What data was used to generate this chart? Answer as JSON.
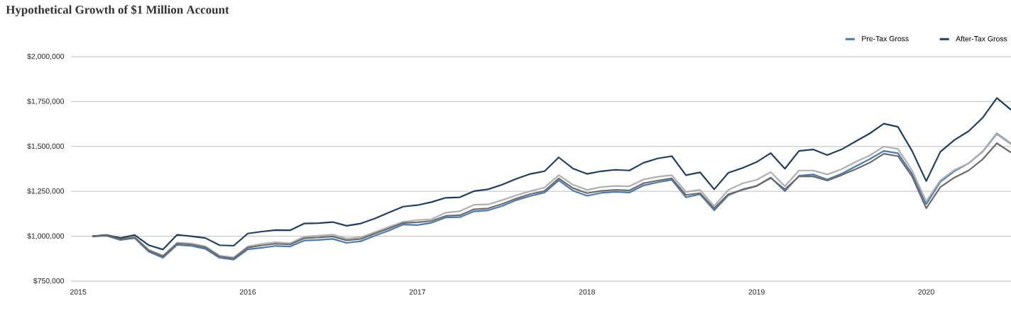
{
  "chart_data": {
    "type": "line",
    "title": "Hypothetical Growth of $1 Million Account",
    "x": [
      "2015-02",
      "2015-03",
      "2015-04",
      "2015-05",
      "2015-06",
      "2015-07",
      "2015-08",
      "2015-09",
      "2015-10",
      "2015-11",
      "2015-12",
      "2016-01",
      "2016-02",
      "2016-03",
      "2016-04",
      "2016-05",
      "2016-06",
      "2016-07",
      "2016-08",
      "2016-09",
      "2016-10",
      "2016-11",
      "2016-12",
      "2017-01",
      "2017-02",
      "2017-03",
      "2017-04",
      "2017-05",
      "2017-06",
      "2017-07",
      "2017-08",
      "2017-09",
      "2017-10",
      "2017-11",
      "2017-12",
      "2018-01",
      "2018-02",
      "2018-03",
      "2018-04",
      "2018-05",
      "2018-06",
      "2018-07",
      "2018-08",
      "2018-09",
      "2018-10",
      "2018-11",
      "2018-12",
      "2019-01",
      "2019-02",
      "2019-03",
      "2019-04",
      "2019-05",
      "2019-06",
      "2019-07",
      "2019-08",
      "2019-09",
      "2019-10",
      "2019-11",
      "2019-12",
      "2020-01",
      "2020-02",
      "2020-03",
      "2020-04",
      "2020-05",
      "2020-06",
      "2020-07"
    ],
    "series": [
      {
        "name": "Pre-Tax Gross",
        "color": "#4a7ab0",
        "values": [
          1000000,
          1003000,
          979000,
          990000,
          914000,
          880000,
          952000,
          946000,
          930000,
          880000,
          870000,
          927000,
          936000,
          946000,
          943000,
          976000,
          979000,
          985000,
          963000,
          972000,
          1003000,
          1032000,
          1065000,
          1062000,
          1075000,
          1104000,
          1106000,
          1138000,
          1144000,
          1168000,
          1201000,
          1224000,
          1243000,
          1311000,
          1254000,
          1225000,
          1241000,
          1247000,
          1243000,
          1283000,
          1300000,
          1314000,
          1217000,
          1234000,
          1144000,
          1228000,
          1261000,
          1280000,
          1327000,
          1251000,
          1337000,
          1344000,
          1316000,
          1347000,
          1389000,
          1429000,
          1475000,
          1462000,
          1347000,
          1179000,
          1303000,
          1363000,
          1406000,
          1472000,
          1572000,
          1515000
        ]
      },
      {
        "color": "#b0b0b0",
        "values": [
          1000000,
          1006000,
          984000,
          995000,
          924000,
          893000,
          964000,
          960000,
          944000,
          892000,
          882000,
          943000,
          958000,
          966000,
          961000,
          998000,
          1003000,
          1009000,
          987000,
          994000,
          1023000,
          1052000,
          1080000,
          1090000,
          1095000,
          1131000,
          1139000,
          1175000,
          1177000,
          1201000,
          1228000,
          1251000,
          1271000,
          1340000,
          1287000,
          1258000,
          1274000,
          1280000,
          1278000,
          1316000,
          1331000,
          1340000,
          1247000,
          1258000,
          1168000,
          1258000,
          1294000,
          1314000,
          1357000,
          1278000,
          1366000,
          1366000,
          1344000,
          1373000,
          1413000,
          1450000,
          1499000,
          1486000,
          1366000,
          1194000,
          1311000,
          1369000,
          1406000,
          1470000,
          1568000,
          1512000
        ]
      },
      {
        "name": "After-Tax Gross",
        "color": "#1f3f60",
        "values": [
          1000000,
          1007000,
          990000,
          1007000,
          950000,
          926000,
          1008000,
          1000000,
          990000,
          950000,
          947000,
          1015000,
          1026000,
          1034000,
          1033000,
          1071000,
          1073000,
          1079000,
          1058000,
          1071000,
          1099000,
          1132000,
          1165000,
          1173000,
          1190000,
          1214000,
          1217000,
          1251000,
          1261000,
          1287000,
          1320000,
          1347000,
          1362000,
          1439000,
          1377000,
          1347000,
          1362000,
          1370000,
          1366000,
          1409000,
          1433000,
          1446000,
          1340000,
          1356000,
          1261000,
          1353000,
          1380000,
          1413000,
          1463000,
          1376000,
          1475000,
          1483000,
          1452000,
          1483000,
          1528000,
          1572000,
          1627000,
          1609000,
          1475000,
          1307000,
          1470000,
          1536000,
          1585000,
          1660000,
          1770000,
          1704000
        ]
      },
      {
        "color": "#6b6b6b",
        "values": [
          1000000,
          1005000,
          982000,
          993000,
          920000,
          888000,
          959000,
          954000,
          938000,
          887000,
          877000,
          937000,
          949000,
          958000,
          954000,
          989000,
          993000,
          999000,
          977000,
          985000,
          1015000,
          1044000,
          1074000,
          1078000,
          1085000,
          1113000,
          1117000,
          1150000,
          1155000,
          1180000,
          1210000,
          1235000,
          1252000,
          1322000,
          1268000,
          1240000,
          1252000,
          1258000,
          1255000,
          1295000,
          1310000,
          1322000,
          1230000,
          1240000,
          1155000,
          1234000,
          1258000,
          1280000,
          1324000,
          1261000,
          1333000,
          1333000,
          1310000,
          1340000,
          1373000,
          1409000,
          1459000,
          1446000,
          1333000,
          1156000,
          1274000,
          1327000,
          1366000,
          1429000,
          1518000,
          1466000
        ]
      }
    ],
    "xlim": [
      "2014-12-16",
      "2020-07"
    ],
    "xticks": [
      "2015",
      "2016",
      "2017",
      "2018",
      "2019",
      "2020"
    ],
    "ylim": [
      750000,
      2000000
    ],
    "yticks": [
      {
        "value": 750000,
        "label": "$750,000"
      },
      {
        "value": 1000000,
        "label": "$1,000,000"
      },
      {
        "value": 1250000,
        "label": "$1,250,000"
      },
      {
        "value": 1500000,
        "label": "$1,500,000"
      },
      {
        "value": 1750000,
        "label": "$1,750,000"
      },
      {
        "value": 2000000,
        "label": "$2,000,000"
      }
    ],
    "grid": "y",
    "legend": "top right",
    "marker": "none",
    "line_style": "solid"
  }
}
